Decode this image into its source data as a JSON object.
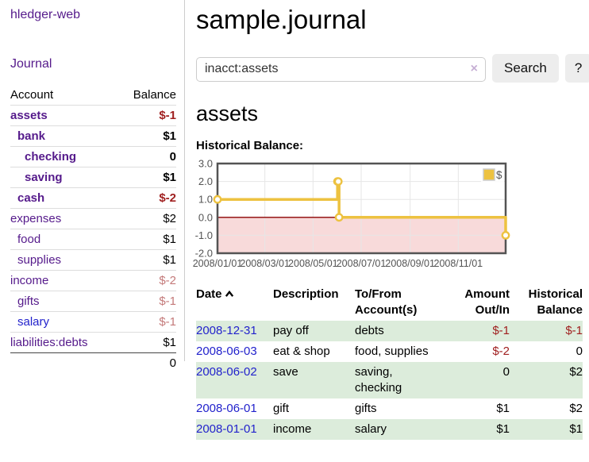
{
  "app": {
    "brand": "hledger-web",
    "nav_journal": "Journal"
  },
  "sidebar": {
    "header_account": "Account",
    "header_balance": "Balance",
    "accounts": [
      {
        "name": "assets",
        "depth": 1,
        "balance": "$-1",
        "bold": true,
        "link": "purple"
      },
      {
        "name": "bank",
        "depth": 2,
        "balance": "$1",
        "bold": true,
        "link": "purple"
      },
      {
        "name": "checking",
        "depth": 3,
        "balance": "0",
        "bold": true,
        "link": "purple"
      },
      {
        "name": "saving",
        "depth": 3,
        "balance": "$1",
        "bold": true,
        "link": "purple"
      },
      {
        "name": "cash",
        "depth": 2,
        "balance": "$-2",
        "bold": true,
        "link": "purple"
      },
      {
        "name": "expenses",
        "depth": 1,
        "balance": "$2",
        "bold": false,
        "link": "purple"
      },
      {
        "name": "food",
        "depth": 2,
        "balance": "$1",
        "bold": false,
        "link": "purple"
      },
      {
        "name": "supplies",
        "depth": 2,
        "balance": "$1",
        "bold": false,
        "link": "purple"
      },
      {
        "name": "income",
        "depth": 1,
        "balance": "$-2",
        "bold": false,
        "link": "purple"
      },
      {
        "name": "gifts",
        "depth": 2,
        "balance": "$-1",
        "bold": false,
        "link": "purple"
      },
      {
        "name": "salary",
        "depth": 2,
        "balance": "$-1",
        "bold": false,
        "link": "blue"
      },
      {
        "name": "liabilities:debts",
        "depth": 1,
        "balance": "$1",
        "bold": false,
        "link": "purple"
      }
    ],
    "total": "0"
  },
  "main": {
    "title": "sample.journal",
    "search": {
      "value": "inacct:assets",
      "clear_icon": "×",
      "search_label": "Search",
      "help_label": "?"
    },
    "heading": "assets",
    "chart_title": "Historical Balance:",
    "register": {
      "headers": {
        "date": "Date",
        "sort_icon": "chevron-up-icon",
        "description": "Description",
        "accounts": "To/From Account(s)",
        "amount": "Amount Out/In",
        "balance": "Historical Balance"
      },
      "rows": [
        {
          "date": "2008-12-31",
          "description": "pay off",
          "accounts": "debts",
          "amount": "$-1",
          "balance": "$-1"
        },
        {
          "date": "2008-06-03",
          "description": "eat & shop",
          "accounts": "food, supplies",
          "amount": "$-2",
          "balance": "0"
        },
        {
          "date": "2008-06-02",
          "description": "save",
          "accounts": "saving, checking",
          "amount": "0",
          "balance": "$2"
        },
        {
          "date": "2008-06-01",
          "description": "gift",
          "accounts": "gifts",
          "amount": "$1",
          "balance": "$2"
        },
        {
          "date": "2008-01-01",
          "description": "income",
          "accounts": "salary",
          "amount": "$1",
          "balance": "$1"
        }
      ]
    }
  },
  "chart_data": {
    "type": "line",
    "step": true,
    "title": "Historical Balance:",
    "x": [
      "2008-01-01",
      "2008-06-01",
      "2008-06-02",
      "2008-06-03",
      "2008-12-31"
    ],
    "y": [
      1,
      2,
      2,
      0,
      -1
    ],
    "x_ticks": [
      "2008/01/01",
      "2008/03/01",
      "2008/05/01",
      "2008/07/01",
      "2008/09/01",
      "2008/11/01"
    ],
    "y_ticks": [
      "3.0",
      "2.0",
      "1.0",
      "0.0",
      "-1.0",
      "-2.0"
    ],
    "ylim": [
      -2,
      3
    ],
    "xlim": [
      "2008/01/01",
      "2008/12/31"
    ],
    "grid": true,
    "legend": [
      {
        "label": "$",
        "color": "#EDC240"
      }
    ],
    "legend_position": "top-right",
    "negative_region": true
  },
  "colors": {
    "link_purple": "#551a8b",
    "link_blue": "#2222cc",
    "neg_strong": "#a02020",
    "neg_soft": "#c47a7a",
    "row_green": "#dcecdb",
    "series_yellow": "#EDC240",
    "zero_line": "#8b0000",
    "negative_fill": "#f8dada",
    "chart_border": "#545454",
    "grid_line": "#e6e6e6",
    "tick_text": "#545454"
  }
}
